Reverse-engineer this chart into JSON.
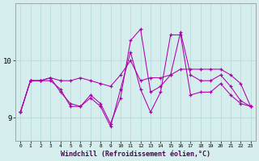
{
  "x": [
    0,
    1,
    2,
    3,
    4,
    5,
    6,
    7,
    8,
    9,
    10,
    11,
    12,
    13,
    14,
    15,
    16,
    17,
    18,
    19,
    20,
    21,
    22,
    23
  ],
  "line1": [
    9.1,
    9.65,
    9.65,
    9.7,
    9.65,
    9.65,
    9.7,
    9.65,
    9.6,
    9.55,
    9.75,
    10.0,
    9.65,
    9.7,
    9.7,
    9.75,
    9.85,
    9.85,
    9.85,
    9.85,
    9.85,
    9.75,
    9.6,
    9.2
  ],
  "line2": [
    9.1,
    9.65,
    9.65,
    9.7,
    9.45,
    9.25,
    9.2,
    9.4,
    9.25,
    8.9,
    9.35,
    10.35,
    10.55,
    9.45,
    9.55,
    9.75,
    10.5,
    9.75,
    9.65,
    9.65,
    9.75,
    9.55,
    9.3,
    9.2
  ],
  "line3": [
    9.1,
    9.65,
    9.65,
    9.65,
    9.5,
    9.2,
    9.2,
    9.35,
    9.2,
    8.85,
    9.5,
    10.15,
    9.5,
    9.1,
    9.45,
    10.45,
    10.45,
    9.4,
    9.45,
    9.45,
    9.6,
    9.4,
    9.25,
    9.2
  ],
  "line_color": "#aa00aa",
  "bg_color": "#d5eeed",
  "grid_color": "#b2d8d8",
  "xlabel": "Windchill (Refroidissement éolien,°C)",
  "yticks": [
    9,
    10
  ],
  "ylim": [
    8.6,
    11.0
  ],
  "xlim": [
    -0.5,
    23.5
  ],
  "xticks": [
    0,
    1,
    2,
    3,
    4,
    5,
    6,
    7,
    8,
    9,
    10,
    11,
    12,
    13,
    14,
    15,
    16,
    17,
    18,
    19,
    20,
    21,
    22,
    23
  ]
}
